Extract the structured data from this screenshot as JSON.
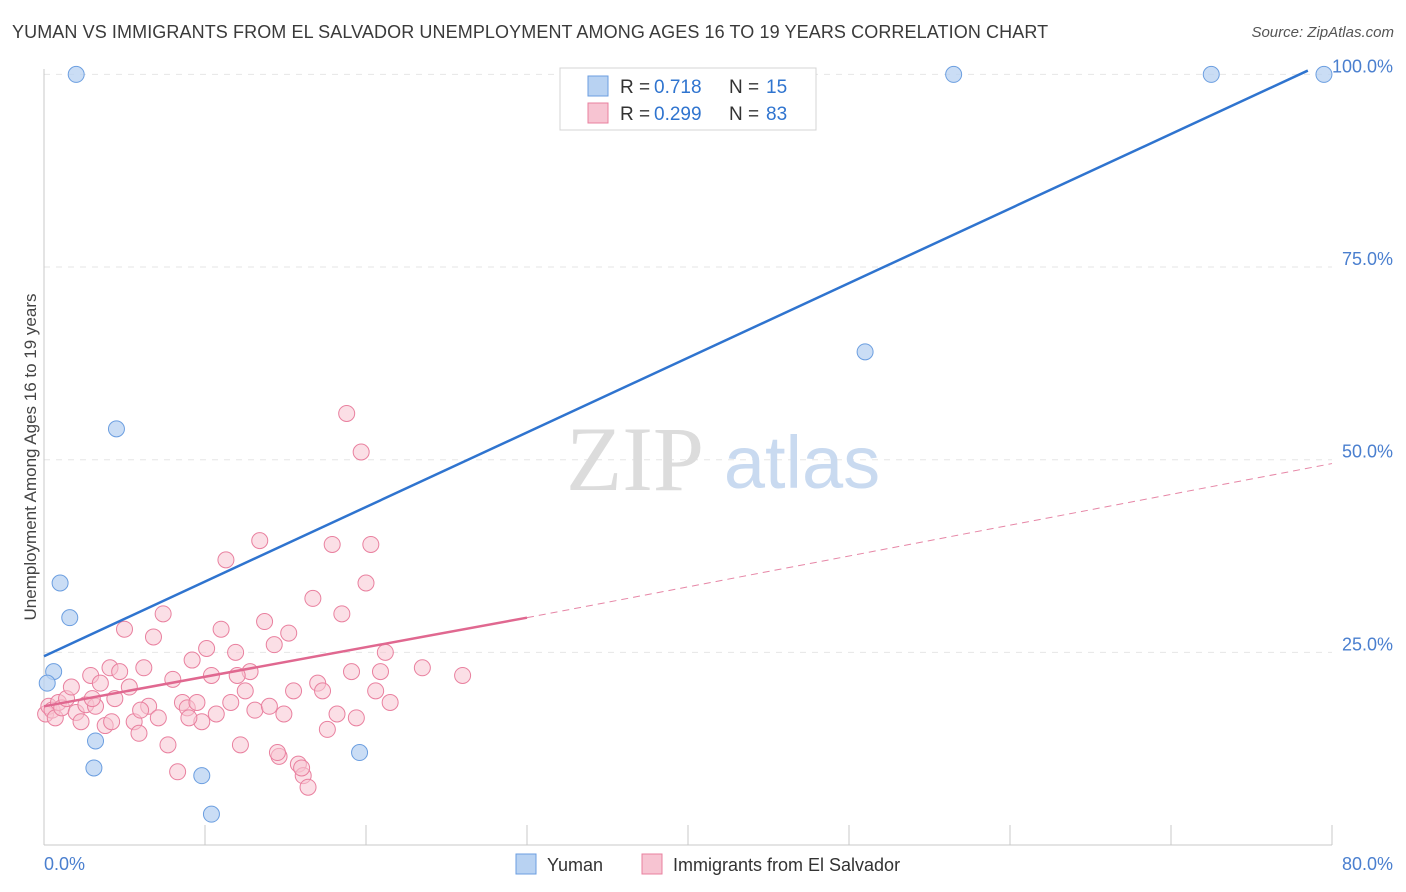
{
  "header": {
    "title": "YUMAN VS IMMIGRANTS FROM EL SALVADOR UNEMPLOYMENT AMONG AGES 16 TO 19 YEARS CORRELATION CHART",
    "source": "Source: ZipAtlas.com"
  },
  "watermark": {
    "zip": "ZIP",
    "atlas": "atlas"
  },
  "colors": {
    "blue_fill": "#b8d2f2",
    "blue_stroke": "#6b9ee0",
    "blue_line": "#2f74cf",
    "pink_fill": "#f7c4d2",
    "pink_stroke": "#e9809f",
    "pink_line": "#e06890",
    "tick_label": "#4a7fcf",
    "grid": "#e6e6e6"
  },
  "chart_data": {
    "type": "scatter",
    "title": "YUMAN VS IMMIGRANTS FROM EL SALVADOR UNEMPLOYMENT AMONG AGES 16 TO 19 YEARS CORRELATION CHART",
    "xlabel": "",
    "ylabel": "Unemployment Among Ages 16 to 19 years",
    "xlim": [
      0,
      80
    ],
    "ylim": [
      0,
      102
    ],
    "x_tick_labels": [
      {
        "value": 0,
        "label": "0.0%"
      },
      {
        "value": 80,
        "label": "80.0%"
      }
    ],
    "y_tick_labels": [
      {
        "value": 25,
        "label": "25.0%"
      },
      {
        "value": 50,
        "label": "50.0%"
      },
      {
        "value": 75,
        "label": "75.0%"
      },
      {
        "value": 100,
        "label": "100.0%"
      }
    ],
    "legend": {
      "position": "top-center",
      "entries": [
        {
          "r_label": "R =",
          "r_value": "0.718",
          "n_label": "N =",
          "n_value": "15"
        },
        {
          "r_label": "R =",
          "r_value": "0.299",
          "n_label": "N =",
          "n_value": "83"
        }
      ]
    },
    "bottom_legend": [
      "Yuman",
      "Immigrants from El Salvador"
    ],
    "series": [
      {
        "name": "Yuman",
        "trend": {
          "x0": 0,
          "y0": 24.5,
          "x1": 78.5,
          "y1": 100.5
        },
        "points": [
          [
            2.0,
            100
          ],
          [
            56.5,
            100
          ],
          [
            72.5,
            100
          ],
          [
            79.5,
            100
          ],
          [
            51.0,
            64
          ],
          [
            4.5,
            54
          ],
          [
            1.0,
            34
          ],
          [
            1.6,
            29.5
          ],
          [
            0.6,
            22.5
          ],
          [
            0.2,
            21
          ],
          [
            3.2,
            13.5
          ],
          [
            3.1,
            10
          ],
          [
            19.6,
            12
          ],
          [
            9.8,
            9
          ],
          [
            10.4,
            4
          ]
        ]
      },
      {
        "name": "Immigrants from El Salvador",
        "trend": {
          "x0": 0,
          "y0": 18,
          "x1": 30,
          "y1": 29.5
        },
        "trend_dashed": {
          "x0": 30,
          "y0": 29.5,
          "x1": 80,
          "y1": 49.5
        },
        "points": [
          [
            0.1,
            17
          ],
          [
            0.3,
            18
          ],
          [
            0.5,
            17.5
          ],
          [
            0.7,
            16.5
          ],
          [
            0.9,
            18.5
          ],
          [
            1.1,
            17.8
          ],
          [
            1.4,
            19
          ],
          [
            1.7,
            20.5
          ],
          [
            2.0,
            17.2
          ],
          [
            2.3,
            16
          ],
          [
            2.6,
            18.2
          ],
          [
            2.9,
            22
          ],
          [
            3.2,
            18
          ],
          [
            3.5,
            21
          ],
          [
            3.8,
            15.5
          ],
          [
            4.1,
            23
          ],
          [
            4.4,
            19
          ],
          [
            4.7,
            22.5
          ],
          [
            5.0,
            28
          ],
          [
            5.3,
            20.5
          ],
          [
            5.6,
            16
          ],
          [
            5.9,
            14.5
          ],
          [
            6.2,
            23
          ],
          [
            6.5,
            18
          ],
          [
            6.8,
            27
          ],
          [
            7.1,
            16.5
          ],
          [
            7.4,
            30
          ],
          [
            7.7,
            13
          ],
          [
            8.0,
            21.5
          ],
          [
            8.3,
            9.5
          ],
          [
            8.6,
            18.5
          ],
          [
            8.9,
            17.8
          ],
          [
            9.2,
            24
          ],
          [
            9.5,
            18.5
          ],
          [
            9.8,
            16
          ],
          [
            10.1,
            25.5
          ],
          [
            10.4,
            22
          ],
          [
            10.7,
            17
          ],
          [
            11.0,
            28
          ],
          [
            11.3,
            37
          ],
          [
            11.6,
            18.5
          ],
          [
            11.9,
            25
          ],
          [
            12.2,
            13
          ],
          [
            12.5,
            20
          ],
          [
            12.8,
            22.5
          ],
          [
            13.1,
            17.5
          ],
          [
            13.4,
            39.5
          ],
          [
            13.7,
            29
          ],
          [
            14.0,
            18
          ],
          [
            14.3,
            26
          ],
          [
            14.6,
            11.5
          ],
          [
            14.9,
            17
          ],
          [
            15.2,
            27.5
          ],
          [
            15.5,
            20
          ],
          [
            15.8,
            10.5
          ],
          [
            16.1,
            9
          ],
          [
            16.4,
            7.5
          ],
          [
            16.7,
            32
          ],
          [
            17.0,
            21
          ],
          [
            17.3,
            20
          ],
          [
            17.6,
            15
          ],
          [
            17.9,
            39
          ],
          [
            18.2,
            17
          ],
          [
            18.5,
            30
          ],
          [
            18.8,
            56
          ],
          [
            19.1,
            22.5
          ],
          [
            19.4,
            16.5
          ],
          [
            19.7,
            51
          ],
          [
            20.0,
            34
          ],
          [
            20.3,
            39
          ],
          [
            20.6,
            20
          ],
          [
            20.9,
            22.5
          ],
          [
            21.2,
            25
          ],
          [
            21.5,
            18.5
          ],
          [
            23.5,
            23
          ],
          [
            26.0,
            22
          ],
          [
            4.2,
            16
          ],
          [
            6.0,
            17.5
          ],
          [
            9.0,
            16.5
          ],
          [
            12.0,
            22
          ],
          [
            14.5,
            12
          ],
          [
            16.0,
            10
          ],
          [
            3.0,
            19
          ]
        ]
      }
    ]
  }
}
